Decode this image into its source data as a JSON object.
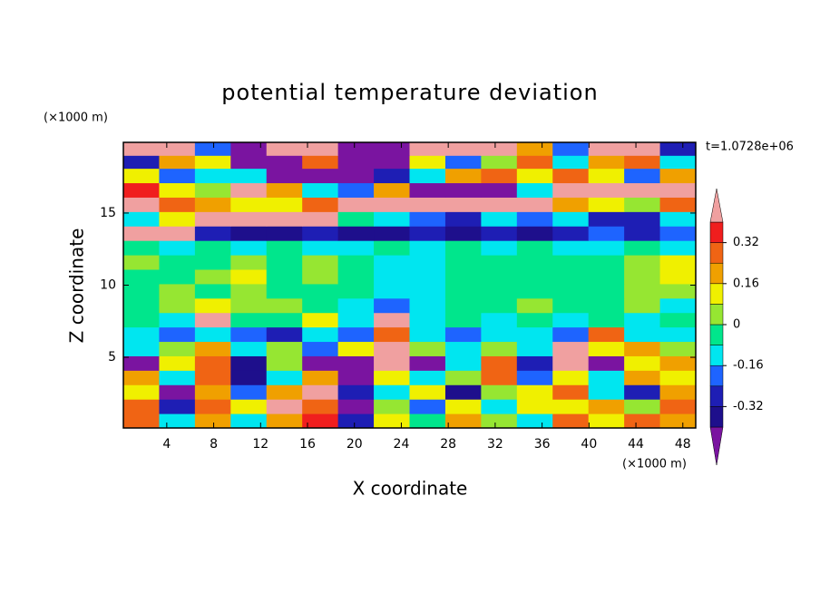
{
  "chart_data": {
    "type": "contour",
    "title": "potential temperature deviation",
    "xlabel": "X coordinate",
    "ylabel": "Z coordinate",
    "x_unit_label": "(×1000 m)",
    "y_unit_label": "(×1000 m)",
    "time_label": "t=1.0728e+06",
    "xlim": [
      0.3,
      49.1
    ],
    "ylim": [
      0.1,
      19.9
    ],
    "xticks": [
      4,
      8,
      12,
      16,
      20,
      24,
      28,
      32,
      36,
      40,
      44,
      48
    ],
    "yticks": [
      5,
      10,
      15
    ],
    "x": [
      1.8,
      4.9,
      7.9,
      11,
      14,
      17.1,
      20.1,
      23.2,
      26.2,
      29.3,
      32.3,
      35.4,
      38.4,
      41.5,
      44.5,
      47.6
    ],
    "y": [
      0.6,
      1.6,
      2.6,
      3.6,
      4.6,
      5.6,
      6.6,
      7.6,
      8.6,
      9.6,
      10.6,
      11.6,
      12.6,
      13.6,
      14.6,
      15.6,
      16.6,
      17.6,
      18.6,
      19.4
    ],
    "z": [
      [
        0.3,
        -0.1,
        0.2,
        -0.1,
        0.2,
        0.35,
        -0.3,
        0.1,
        -0.05,
        0.2,
        0.05,
        -0.1,
        0.25,
        0.1,
        0.3,
        0.2
      ],
      [
        0.25,
        -0.3,
        0.3,
        0.1,
        0.45,
        0.3,
        -0.45,
        0.0,
        -0.2,
        0.1,
        -0.1,
        0.15,
        0.1,
        0.2,
        0.0,
        0.3
      ],
      [
        0.1,
        -0.45,
        0.2,
        -0.2,
        0.2,
        0.45,
        -0.3,
        -0.1,
        0.1,
        -0.35,
        0.05,
        0.1,
        0.3,
        -0.1,
        -0.3,
        0.2
      ],
      [
        0.2,
        -0.1,
        0.3,
        -0.35,
        -0.1,
        0.2,
        -0.45,
        0.1,
        -0.1,
        0.0,
        0.25,
        -0.2,
        0.15,
        -0.1,
        0.2,
        0.1
      ],
      [
        -0.45,
        0.1,
        0.3,
        -0.4,
        0.05,
        -0.45,
        -0.45,
        0.45,
        -0.45,
        -0.1,
        0.3,
        -0.3,
        0.45,
        -0.45,
        0.1,
        0.2
      ],
      [
        -0.1,
        0.05,
        0.2,
        -0.1,
        0.0,
        -0.2,
        0.1,
        0.45,
        0.05,
        -0.1,
        0.0,
        -0.15,
        0.45,
        0.1,
        0.2,
        0.05
      ],
      [
        -0.15,
        -0.2,
        -0.1,
        -0.2,
        -0.25,
        -0.1,
        -0.2,
        0.3,
        -0.1,
        -0.2,
        -0.15,
        -0.1,
        -0.2,
        0.3,
        -0.1,
        -0.15
      ],
      [
        -0.05,
        -0.1,
        0.45,
        -0.05,
        -0.05,
        0.1,
        -0.1,
        0.45,
        -0.15,
        -0.05,
        -0.1,
        -0.05,
        -0.1,
        -0.05,
        -0.1,
        -0.05
      ],
      [
        -0.05,
        0.0,
        0.1,
        0.05,
        0.0,
        -0.05,
        -0.1,
        -0.2,
        -0.1,
        -0.05,
        -0.05,
        0.0,
        -0.05,
        -0.05,
        0.0,
        -0.1
      ],
      [
        -0.02,
        0.05,
        -0.02,
        0.05,
        -0.03,
        -0.05,
        -0.05,
        -0.1,
        -0.1,
        -0.05,
        -0.03,
        -0.04,
        -0.03,
        -0.02,
        0.0,
        0.05
      ],
      [
        -0.03,
        -0.02,
        0.05,
        0.1,
        -0.04,
        0.05,
        -0.03,
        -0.1,
        -0.12,
        -0.05,
        -0.03,
        -0.02,
        -0.04,
        -0.03,
        0.05,
        0.1
      ],
      [
        0.05,
        -0.03,
        -0.02,
        0.05,
        -0.03,
        0.05,
        -0.02,
        -0.1,
        -0.1,
        -0.05,
        -0.04,
        -0.03,
        -0.05,
        -0.02,
        0.05,
        0.1
      ],
      [
        -0.05,
        -0.1,
        -0.05,
        -0.1,
        -0.05,
        -0.1,
        -0.1,
        -0.05,
        -0.1,
        -0.05,
        -0.1,
        -0.05,
        -0.1,
        -0.1,
        -0.05,
        -0.1
      ],
      [
        0.45,
        0.45,
        -0.3,
        -0.4,
        -0.35,
        -0.3,
        -0.35,
        -0.4,
        -0.3,
        -0.35,
        -0.3,
        -0.35,
        -0.3,
        -0.2,
        -0.3,
        -0.2
      ],
      [
        -0.1,
        0.1,
        0.45,
        0.45,
        0.45,
        0.45,
        -0.05,
        -0.1,
        -0.2,
        -0.25,
        -0.1,
        -0.2,
        -0.15,
        -0.25,
        -0.3,
        -0.1
      ],
      [
        0.45,
        0.3,
        0.2,
        0.15,
        0.1,
        0.3,
        0.45,
        0.45,
        0.45,
        0.45,
        0.45,
        0.45,
        0.2,
        0.1,
        0.0,
        0.3
      ],
      [
        0.35,
        0.1,
        0.0,
        0.45,
        0.2,
        -0.1,
        -0.2,
        0.2,
        -0.45,
        -0.45,
        -0.45,
        -0.1,
        0.45,
        0.45,
        0.45,
        0.45
      ],
      [
        0.1,
        -0.2,
        -0.1,
        -0.1,
        -0.45,
        -0.45,
        -0.45,
        -0.3,
        -0.1,
        0.2,
        0.3,
        0.1,
        0.3,
        0.1,
        -0.2,
        0.2
      ],
      [
        -0.3,
        0.2,
        0.1,
        -0.45,
        -0.45,
        0.3,
        -0.45,
        -0.45,
        0.1,
        -0.2,
        0.0,
        0.3,
        -0.1,
        0.2,
        0.3,
        -0.1
      ],
      [
        0.45,
        0.45,
        -0.2,
        -0.45,
        0.45,
        0.45,
        -0.45,
        -0.45,
        0.45,
        0.45,
        0.45,
        0.2,
        -0.2,
        0.45,
        0.45,
        -0.3
      ]
    ],
    "levels": [
      -0.4,
      -0.32,
      -0.24,
      -0.16,
      -0.08,
      0,
      0.08,
      0.16,
      0.24,
      0.32,
      0.4
    ],
    "colors": [
      "#7a14a0",
      "#1e0f8c",
      "#1e1eb4",
      "#1e64ff",
      "#00e6f0",
      "#00e68c",
      "#96e632",
      "#f0f000",
      "#f0a000",
      "#f06414",
      "#f01e1e",
      "#f0a0a0"
    ],
    "colorbar_ticks": [
      -0.32,
      -0.16,
      0,
      0.16,
      0.32
    ]
  }
}
